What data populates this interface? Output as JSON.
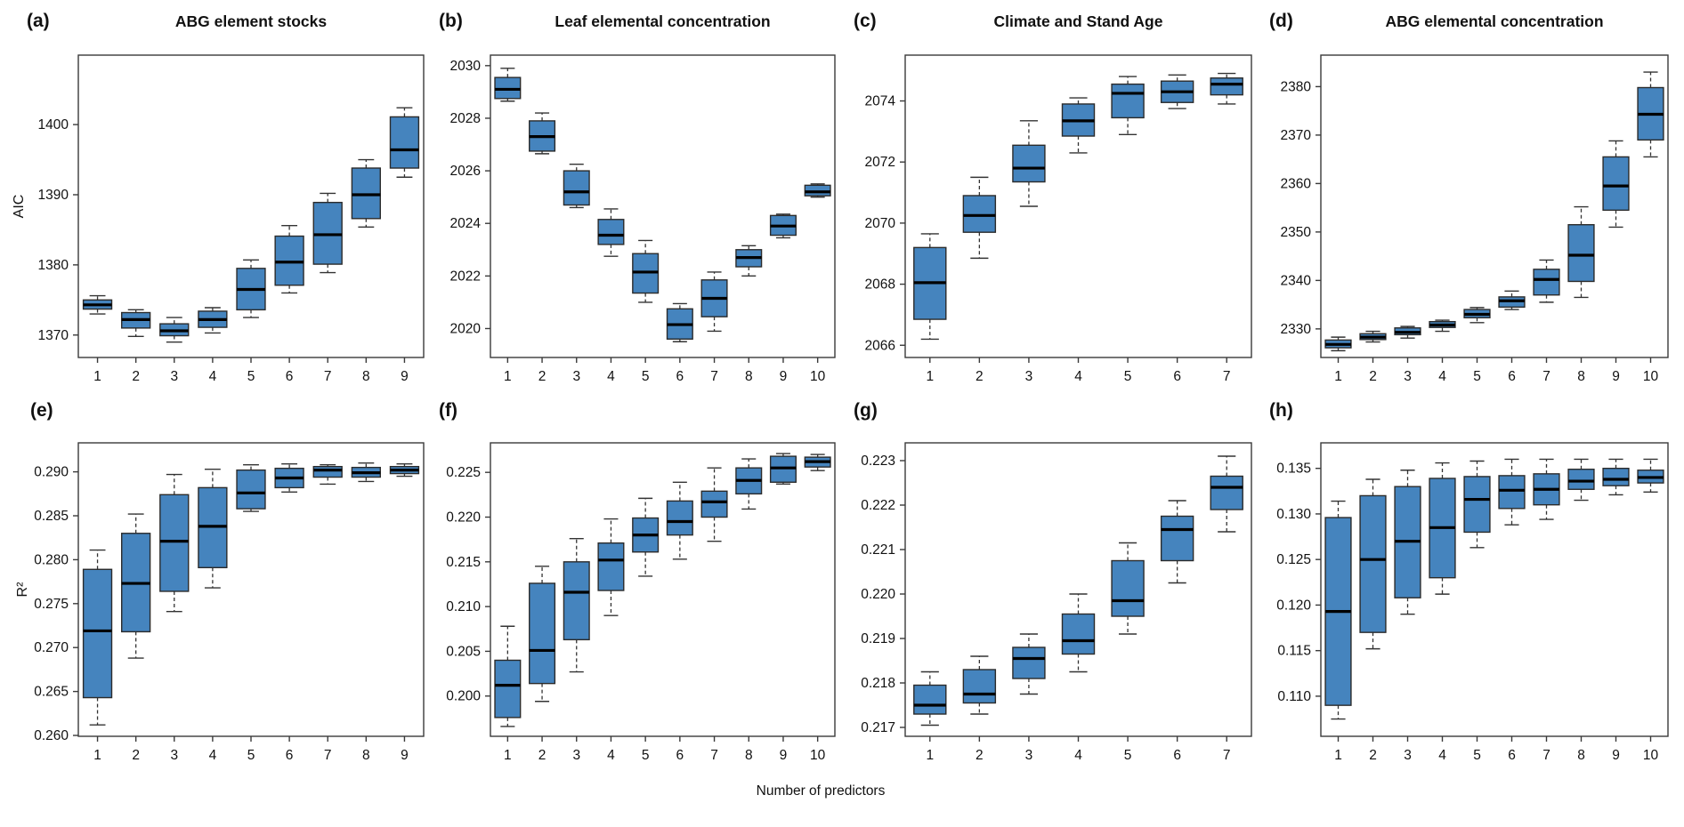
{
  "figure": {
    "xlabel": "Number of predictors",
    "box_fill_color": "#4584be",
    "box_border_color": "#2b2b2b",
    "median_color": "#000000",
    "frame_color": "#3a3a3a"
  },
  "chart_data": [
    {
      "type": "boxplot",
      "id": "a",
      "letter_label": "(a)",
      "title": "ABG element stocks",
      "ylabel": "AIC",
      "xlabel": "",
      "categories": [
        "1",
        "2",
        "3",
        "4",
        "5",
        "6",
        "7",
        "8",
        "9"
      ],
      "ytick_labels": [
        "1370",
        "1380",
        "1390",
        "1400"
      ],
      "ytick_values": [
        1370,
        1380,
        1390,
        1400
      ],
      "ylim": [
        1366.8,
        1409.9
      ],
      "boxes": [
        {
          "whisker_low": 1373.0,
          "q1": 1373.7,
          "median": 1374.3,
          "q3": 1375.0,
          "whisker_high": 1375.6
        },
        {
          "whisker_low": 1369.8,
          "q1": 1371.0,
          "median": 1372.2,
          "q3": 1373.2,
          "whisker_high": 1373.6
        },
        {
          "whisker_low": 1369.0,
          "q1": 1369.9,
          "median": 1370.6,
          "q3": 1371.6,
          "whisker_high": 1372.5
        },
        {
          "whisker_low": 1370.3,
          "q1": 1371.1,
          "median": 1372.2,
          "q3": 1373.4,
          "whisker_high": 1373.9
        },
        {
          "whisker_low": 1372.5,
          "q1": 1373.6,
          "median": 1376.5,
          "q3": 1379.5,
          "whisker_high": 1380.7
        },
        {
          "whisker_low": 1376.0,
          "q1": 1377.1,
          "median": 1380.4,
          "q3": 1384.1,
          "whisker_high": 1385.6
        },
        {
          "whisker_low": 1378.9,
          "q1": 1380.1,
          "median": 1384.3,
          "q3": 1388.9,
          "whisker_high": 1390.2
        },
        {
          "whisker_low": 1385.4,
          "q1": 1386.6,
          "median": 1390.0,
          "q3": 1393.8,
          "whisker_high": 1395.0
        },
        {
          "whisker_low": 1392.5,
          "q1": 1393.8,
          "median": 1396.4,
          "q3": 1401.1,
          "whisker_high": 1402.4
        }
      ]
    },
    {
      "type": "boxplot",
      "id": "b",
      "letter_label": "(b)",
      "title": "Leaf elemental concentration",
      "ylabel": "",
      "xlabel": "",
      "categories": [
        "1",
        "2",
        "3",
        "4",
        "5",
        "6",
        "7",
        "8",
        "9",
        "10"
      ],
      "ytick_labels": [
        "2020",
        "2022",
        "2024",
        "2026",
        "2028",
        "2030"
      ],
      "ytick_values": [
        2020,
        2022,
        2024,
        2026,
        2028,
        2030
      ],
      "ylim": [
        2018.9,
        2030.4
      ],
      "boxes": [
        {
          "whisker_low": 2028.65,
          "q1": 2028.75,
          "median": 2029.1,
          "q3": 2029.55,
          "whisker_high": 2029.9
        },
        {
          "whisker_low": 2026.65,
          "q1": 2026.75,
          "median": 2027.3,
          "q3": 2027.9,
          "whisker_high": 2028.2
        },
        {
          "whisker_low": 2024.6,
          "q1": 2024.7,
          "median": 2025.2,
          "q3": 2026.0,
          "whisker_high": 2026.25
        },
        {
          "whisker_low": 2022.75,
          "q1": 2023.2,
          "median": 2023.55,
          "q3": 2024.15,
          "whisker_high": 2024.55
        },
        {
          "whisker_low": 2021.0,
          "q1": 2021.35,
          "median": 2022.15,
          "q3": 2022.85,
          "whisker_high": 2023.35
        },
        {
          "whisker_low": 2019.5,
          "q1": 2019.6,
          "median": 2020.15,
          "q3": 2020.75,
          "whisker_high": 2020.95
        },
        {
          "whisker_low": 2019.9,
          "q1": 2020.45,
          "median": 2021.15,
          "q3": 2021.85,
          "whisker_high": 2022.15
        },
        {
          "whisker_low": 2022.0,
          "q1": 2022.35,
          "median": 2022.7,
          "q3": 2023.0,
          "whisker_high": 2023.15
        },
        {
          "whisker_low": 2023.45,
          "q1": 2023.55,
          "median": 2023.9,
          "q3": 2024.3,
          "whisker_high": 2024.35
        },
        {
          "whisker_low": 2025.0,
          "q1": 2025.05,
          "median": 2025.2,
          "q3": 2025.45,
          "whisker_high": 2025.5
        }
      ]
    },
    {
      "type": "boxplot",
      "id": "c",
      "letter_label": "(c)",
      "title": "Climate and Stand Age",
      "ylabel": "",
      "xlabel": "",
      "categories": [
        "1",
        "2",
        "3",
        "4",
        "5",
        "6",
        "7"
      ],
      "ytick_labels": [
        "2066",
        "2068",
        "2070",
        "2072",
        "2074"
      ],
      "ytick_values": [
        2066,
        2068,
        2070,
        2072,
        2074
      ],
      "ylim": [
        2065.6,
        2075.5
      ],
      "boxes": [
        {
          "whisker_low": 2066.2,
          "q1": 2066.85,
          "median": 2068.05,
          "q3": 2069.2,
          "whisker_high": 2069.65
        },
        {
          "whisker_low": 2068.85,
          "q1": 2069.7,
          "median": 2070.25,
          "q3": 2070.9,
          "whisker_high": 2071.5
        },
        {
          "whisker_low": 2070.55,
          "q1": 2071.35,
          "median": 2071.8,
          "q3": 2072.55,
          "whisker_high": 2073.35
        },
        {
          "whisker_low": 2072.3,
          "q1": 2072.85,
          "median": 2073.35,
          "q3": 2073.9,
          "whisker_high": 2074.1
        },
        {
          "whisker_low": 2072.9,
          "q1": 2073.45,
          "median": 2074.25,
          "q3": 2074.55,
          "whisker_high": 2074.8
        },
        {
          "whisker_low": 2073.75,
          "q1": 2073.95,
          "median": 2074.3,
          "q3": 2074.65,
          "whisker_high": 2074.85
        },
        {
          "whisker_low": 2073.9,
          "q1": 2074.2,
          "median": 2074.55,
          "q3": 2074.75,
          "whisker_high": 2074.9
        }
      ]
    },
    {
      "type": "boxplot",
      "id": "d",
      "letter_label": "(d)",
      "title": "ABG elemental concentration",
      "ylabel": "",
      "xlabel": "",
      "categories": [
        "1",
        "2",
        "3",
        "4",
        "5",
        "6",
        "7",
        "8",
        "9",
        "10"
      ],
      "ytick_labels": [
        "2330",
        "2340",
        "2350",
        "2360",
        "2370",
        "2380"
      ],
      "ytick_values": [
        2330,
        2340,
        2350,
        2360,
        2370,
        2380
      ],
      "ylim": [
        2324.1,
        2386.5
      ],
      "boxes": [
        {
          "whisker_low": 2325.5,
          "q1": 2326.1,
          "median": 2326.8,
          "q3": 2327.7,
          "whisker_high": 2328.3
        },
        {
          "whisker_low": 2327.3,
          "q1": 2327.8,
          "median": 2328.3,
          "q3": 2329.0,
          "whisker_high": 2329.5
        },
        {
          "whisker_low": 2328.1,
          "q1": 2328.8,
          "median": 2329.3,
          "q3": 2330.2,
          "whisker_high": 2330.5
        },
        {
          "whisker_low": 2329.5,
          "q1": 2330.3,
          "median": 2330.8,
          "q3": 2331.5,
          "whisker_high": 2331.8
        },
        {
          "whisker_low": 2331.3,
          "q1": 2332.3,
          "median": 2333.0,
          "q3": 2334.0,
          "whisker_high": 2334.4
        },
        {
          "whisker_low": 2334.0,
          "q1": 2334.5,
          "median": 2335.8,
          "q3": 2336.6,
          "whisker_high": 2337.8
        },
        {
          "whisker_low": 2335.5,
          "q1": 2337.0,
          "median": 2340.2,
          "q3": 2342.3,
          "whisker_high": 2344.2
        },
        {
          "whisker_low": 2336.5,
          "q1": 2339.8,
          "median": 2345.2,
          "q3": 2351.5,
          "whisker_high": 2355.2
        },
        {
          "whisker_low": 2351.0,
          "q1": 2354.5,
          "median": 2359.5,
          "q3": 2365.5,
          "whisker_high": 2368.8
        },
        {
          "whisker_low": 2365.5,
          "q1": 2369.0,
          "median": 2374.3,
          "q3": 2379.8,
          "whisker_high": 2383.0
        }
      ]
    },
    {
      "type": "boxplot",
      "id": "e",
      "letter_label": "(e)",
      "title": "",
      "ylabel": "R²",
      "xlabel": "",
      "categories": [
        "1",
        "2",
        "3",
        "4",
        "5",
        "6",
        "7",
        "8",
        "9"
      ],
      "ytick_labels": [
        "0.260",
        "0.265",
        "0.270",
        "0.275",
        "0.280",
        "0.285",
        "0.290"
      ],
      "ytick_values": [
        0.26,
        0.265,
        0.27,
        0.275,
        0.28,
        0.285,
        0.29
      ],
      "ylim": [
        0.2599,
        0.2933
      ],
      "boxes": [
        {
          "whisker_low": 0.2612,
          "q1": 0.2643,
          "median": 0.2719,
          "q3": 0.2789,
          "whisker_high": 0.2811
        },
        {
          "whisker_low": 0.2688,
          "q1": 0.2718,
          "median": 0.2773,
          "q3": 0.283,
          "whisker_high": 0.2852
        },
        {
          "whisker_low": 0.2741,
          "q1": 0.2764,
          "median": 0.2821,
          "q3": 0.2874,
          "whisker_high": 0.2897
        },
        {
          "whisker_low": 0.2768,
          "q1": 0.2791,
          "median": 0.2838,
          "q3": 0.2882,
          "whisker_high": 0.2903
        },
        {
          "whisker_low": 0.2855,
          "q1": 0.2858,
          "median": 0.2876,
          "q3": 0.2902,
          "whisker_high": 0.2908
        },
        {
          "whisker_low": 0.2877,
          "q1": 0.2882,
          "median": 0.2893,
          "q3": 0.2904,
          "whisker_high": 0.2909
        },
        {
          "whisker_low": 0.2886,
          "q1": 0.2894,
          "median": 0.2902,
          "q3": 0.2906,
          "whisker_high": 0.2908
        },
        {
          "whisker_low": 0.2889,
          "q1": 0.2894,
          "median": 0.2899,
          "q3": 0.2905,
          "whisker_high": 0.291
        },
        {
          "whisker_low": 0.2895,
          "q1": 0.2898,
          "median": 0.2902,
          "q3": 0.2906,
          "whisker_high": 0.2909
        }
      ]
    },
    {
      "type": "boxplot",
      "id": "f",
      "letter_label": "(f)",
      "title": "",
      "ylabel": "",
      "xlabel": "",
      "categories": [
        "1",
        "2",
        "3",
        "4",
        "5",
        "6",
        "7",
        "8",
        "9",
        "10"
      ],
      "ytick_labels": [
        "0.200",
        "0.205",
        "0.210",
        "0.215",
        "0.220",
        "0.225"
      ],
      "ytick_values": [
        0.2,
        0.205,
        0.21,
        0.215,
        0.22,
        0.225
      ],
      "ylim": [
        0.1955,
        0.2283
      ],
      "boxes": [
        {
          "whisker_low": 0.1966,
          "q1": 0.1976,
          "median": 0.2012,
          "q3": 0.204,
          "whisker_high": 0.2078
        },
        {
          "whisker_low": 0.1994,
          "q1": 0.2014,
          "median": 0.2051,
          "q3": 0.2126,
          "whisker_high": 0.2145
        },
        {
          "whisker_low": 0.2027,
          "q1": 0.2063,
          "median": 0.2116,
          "q3": 0.215,
          "whisker_high": 0.2176
        },
        {
          "whisker_low": 0.209,
          "q1": 0.2118,
          "median": 0.2152,
          "q3": 0.2171,
          "whisker_high": 0.2198
        },
        {
          "whisker_low": 0.2134,
          "q1": 0.2161,
          "median": 0.218,
          "q3": 0.2199,
          "whisker_high": 0.2221
        },
        {
          "whisker_low": 0.2153,
          "q1": 0.218,
          "median": 0.2195,
          "q3": 0.2218,
          "whisker_high": 0.2239
        },
        {
          "whisker_low": 0.2173,
          "q1": 0.22,
          "median": 0.2217,
          "q3": 0.2229,
          "whisker_high": 0.2255
        },
        {
          "whisker_low": 0.2209,
          "q1": 0.2226,
          "median": 0.2241,
          "q3": 0.2255,
          "whisker_high": 0.2265
        },
        {
          "whisker_low": 0.2237,
          "q1": 0.2239,
          "median": 0.2255,
          "q3": 0.2268,
          "whisker_high": 0.2271
        },
        {
          "whisker_low": 0.2252,
          "q1": 0.2256,
          "median": 0.2262,
          "q3": 0.2267,
          "whisker_high": 0.227
        }
      ]
    },
    {
      "type": "boxplot",
      "id": "g",
      "letter_label": "(g)",
      "title": "",
      "ylabel": "",
      "xlabel": "",
      "categories": [
        "1",
        "2",
        "3",
        "4",
        "5",
        "6",
        "7"
      ],
      "ytick_labels": [
        "0.217",
        "0.218",
        "0.219",
        "0.220",
        "0.221",
        "0.222",
        "0.223"
      ],
      "ytick_values": [
        0.217,
        0.218,
        0.219,
        0.22,
        0.221,
        0.222,
        0.223
      ],
      "ylim": [
        0.2168,
        0.2234
      ],
      "boxes": [
        {
          "whisker_low": 0.21705,
          "q1": 0.2173,
          "median": 0.2175,
          "q3": 0.21795,
          "whisker_high": 0.21825
        },
        {
          "whisker_low": 0.2173,
          "q1": 0.21755,
          "median": 0.21775,
          "q3": 0.2183,
          "whisker_high": 0.2186
        },
        {
          "whisker_low": 0.21775,
          "q1": 0.2181,
          "median": 0.21855,
          "q3": 0.2188,
          "whisker_high": 0.2191
        },
        {
          "whisker_low": 0.21825,
          "q1": 0.21865,
          "median": 0.21895,
          "q3": 0.21955,
          "whisker_high": 0.22
        },
        {
          "whisker_low": 0.2191,
          "q1": 0.2195,
          "median": 0.21985,
          "q3": 0.22075,
          "whisker_high": 0.22115
        },
        {
          "whisker_low": 0.22025,
          "q1": 0.22075,
          "median": 0.22145,
          "q3": 0.22175,
          "whisker_high": 0.2221
        },
        {
          "whisker_low": 0.2214,
          "q1": 0.2219,
          "median": 0.2224,
          "q3": 0.22265,
          "whisker_high": 0.2231
        }
      ]
    },
    {
      "type": "boxplot",
      "id": "h",
      "letter_label": "(h)",
      "title": "",
      "ylabel": "",
      "xlabel": "",
      "categories": [
        "1",
        "2",
        "3",
        "4",
        "5",
        "6",
        "7",
        "8",
        "9",
        "10"
      ],
      "ytick_labels": [
        "0.110",
        "0.115",
        "0.120",
        "0.125",
        "0.130",
        "0.135"
      ],
      "ytick_values": [
        0.11,
        0.115,
        0.12,
        0.125,
        0.13,
        0.135
      ],
      "ylim": [
        0.1056,
        0.1378
      ],
      "boxes": [
        {
          "whisker_low": 0.1075,
          "q1": 0.109,
          "median": 0.1193,
          "q3": 0.1296,
          "whisker_high": 0.1314
        },
        {
          "whisker_low": 0.1152,
          "q1": 0.117,
          "median": 0.125,
          "q3": 0.132,
          "whisker_high": 0.1338
        },
        {
          "whisker_low": 0.119,
          "q1": 0.1208,
          "median": 0.127,
          "q3": 0.133,
          "whisker_high": 0.1348
        },
        {
          "whisker_low": 0.1212,
          "q1": 0.123,
          "median": 0.1285,
          "q3": 0.1339,
          "whisker_high": 0.1356
        },
        {
          "whisker_low": 0.1263,
          "q1": 0.128,
          "median": 0.1316,
          "q3": 0.1341,
          "whisker_high": 0.1358
        },
        {
          "whisker_low": 0.1288,
          "q1": 0.1306,
          "median": 0.1326,
          "q3": 0.1342,
          "whisker_high": 0.136
        },
        {
          "whisker_low": 0.1294,
          "q1": 0.131,
          "median": 0.1327,
          "q3": 0.1344,
          "whisker_high": 0.136
        },
        {
          "whisker_low": 0.1315,
          "q1": 0.1327,
          "median": 0.1336,
          "q3": 0.1349,
          "whisker_high": 0.136
        },
        {
          "whisker_low": 0.1321,
          "q1": 0.1331,
          "median": 0.1338,
          "q3": 0.135,
          "whisker_high": 0.136
        },
        {
          "whisker_low": 0.1324,
          "q1": 0.1334,
          "median": 0.134,
          "q3": 0.1348,
          "whisker_high": 0.136
        }
      ]
    }
  ]
}
